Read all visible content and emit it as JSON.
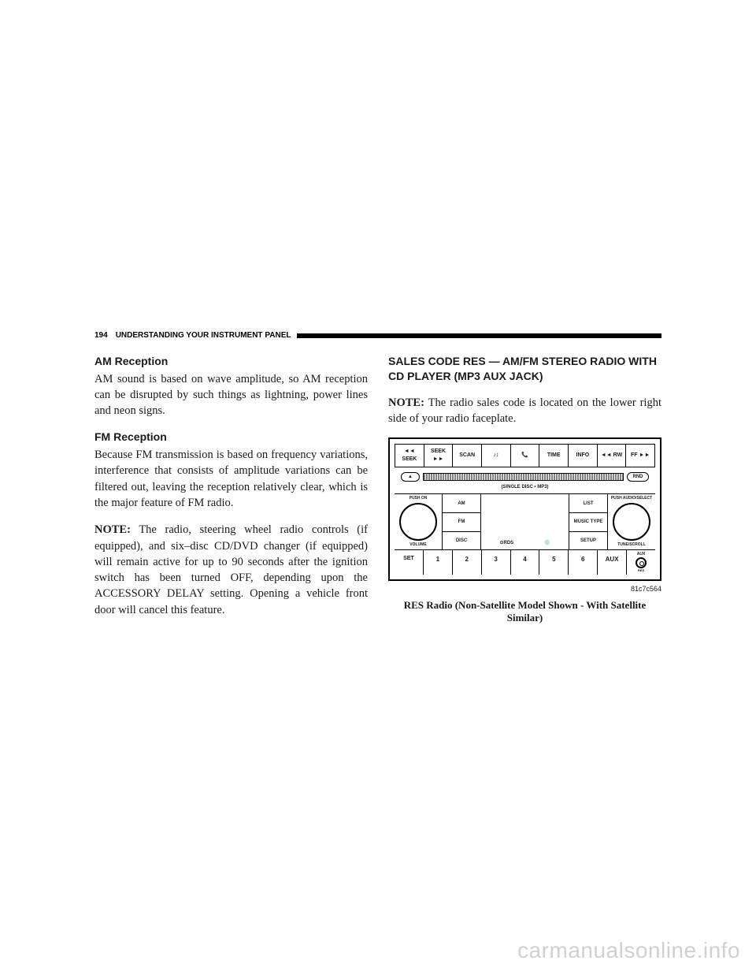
{
  "header": {
    "pageNumber": "194",
    "title": "UNDERSTANDING YOUR INSTRUMENT PANEL"
  },
  "leftColumn": {
    "section1": {
      "heading": "AM Reception",
      "body": "AM sound is based on wave amplitude, so AM reception can be disrupted by such things as lightning, power lines and neon signs."
    },
    "section2": {
      "heading": "FM Reception",
      "body": "Because FM transmission is based on frequency variations, interference that consists of amplitude variations can be filtered out, leaving the reception relatively clear, which is the major feature of FM radio."
    },
    "note": {
      "label": "NOTE:",
      "body": "The radio, steering wheel radio controls (if equipped), and six–disc CD/DVD changer (if equipped) will remain active for up to 90 seconds after the ignition switch has been turned OFF, depending upon the ACCESSORY DELAY setting. Opening a vehicle front door will cancel this feature."
    }
  },
  "rightColumn": {
    "heading": "SALES CODE RES — AM/FM STEREO RADIO WITH CD PLAYER (MP3 AUX JACK)",
    "note": {
      "label": "NOTE:",
      "body": "The radio sales code is located on the lower right side of your radio faceplate."
    },
    "figureCode": "81c7c564",
    "figureCaption": "RES Radio (Non-Satellite Model Shown - With Satellite Similar)"
  },
  "radio": {
    "topButtons": [
      "◄◄ SEEK",
      "SEEK ►►",
      "SCAN",
      "♪↕",
      "📞",
      "TIME",
      "INFO",
      "◄◄ RW",
      "FF ►►"
    ],
    "eject": "▲",
    "rnd": "RND",
    "slotLabel": "(SINGLE DISC • MP3)",
    "leftKnob": {
      "topLabel": "PUSH ON",
      "bottomLabel": "VOLUME"
    },
    "rightKnob": {
      "topLabel": "PUSH AUDIO/SELECT",
      "bottomLabel": "TUNE/SCROLL"
    },
    "leftMidButtons": [
      "AM",
      "FM",
      "DISC"
    ],
    "rightMidButtons": [
      "LIST",
      "MUSIC TYPE",
      "SETUP"
    ],
    "displayLogos": [
      "⊙RDS",
      "💿"
    ],
    "presets": [
      "SET",
      "1",
      "2",
      "3",
      "4",
      "5",
      "6",
      "AUX"
    ],
    "auxLabel": "AUX",
    "resLabel": "RES"
  },
  "watermark": "carmanualsonline.info",
  "colors": {
    "text": "#1a1a1a",
    "background": "#ffffff",
    "border": "#000000",
    "watermark": "#d0d0d0"
  }
}
